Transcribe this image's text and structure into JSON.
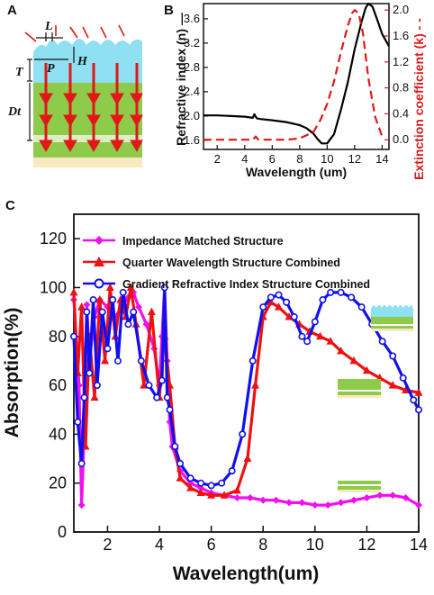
{
  "panel_labels": {
    "a": "A",
    "b": "B",
    "c": "C"
  },
  "schematic": {
    "labels": {
      "L": "L",
      "H": "H",
      "P": "P",
      "T": "T",
      "Dt": "Dt"
    },
    "colors": {
      "cyan": "#8ee0f2",
      "green": "#8ecb4a",
      "cream": "#fae8c0",
      "arrow": "#e01818"
    }
  },
  "chart_data": [
    {
      "type": "line",
      "panel": "B",
      "xlabel": "Wavelength (um)",
      "ylabel": "Refractive index (n) —",
      "ylabel_right": "Extinction coefficient (k) - -",
      "xlim": [
        1,
        14.5
      ],
      "ylim": [
        1.45,
        3.85
      ],
      "ylim_right": [
        -0.15,
        2.1
      ],
      "xticks": [
        "2",
        "4",
        "6",
        "8",
        "10",
        "12",
        "14"
      ],
      "yticks": [
        "1.6",
        "2.0",
        "2.4",
        "2.8",
        "3.2",
        "3.6"
      ],
      "yticks_right": [
        "0.0",
        "0.4",
        "0.8",
        "1.2",
        "1.6",
        "2.0"
      ],
      "series": [
        {
          "color": "#000000",
          "style": "solid",
          "axis": "left",
          "x": [
            1.0,
            2.0,
            3.0,
            4.0,
            4.6,
            4.7,
            4.8,
            4.9,
            5.2,
            6.0,
            7.0,
            8.0,
            8.5,
            9.0,
            9.3,
            9.6,
            10.0,
            10.5,
            11.0,
            11.5,
            12.0,
            12.5,
            12.8,
            13.0,
            13.3,
            13.7,
            14.0,
            14.5
          ],
          "y": [
            2.01,
            2.01,
            2.0,
            1.99,
            1.97,
            2.03,
            1.99,
            1.96,
            1.95,
            1.93,
            1.9,
            1.85,
            1.8,
            1.71,
            1.62,
            1.55,
            1.55,
            1.7,
            2.1,
            2.55,
            3.1,
            3.55,
            3.78,
            3.85,
            3.8,
            3.55,
            3.35,
            3.15
          ]
        },
        {
          "color": "#e01818",
          "style": "dashed",
          "axis": "right",
          "x": [
            1.0,
            3.0,
            4.6,
            4.8,
            5.0,
            6.0,
            7.0,
            8.0,
            9.0,
            9.5,
            10.0,
            10.5,
            11.0,
            11.5,
            11.8,
            12.0,
            12.3,
            12.6,
            13.0,
            13.5,
            14.0
          ],
          "y": [
            0.0,
            0.0,
            0.0,
            0.05,
            0.0,
            0.0,
            0.0,
            0.02,
            0.12,
            0.3,
            0.55,
            0.9,
            1.35,
            1.75,
            1.95,
            2.0,
            1.95,
            1.65,
            0.95,
            0.35,
            0.05
          ]
        }
      ]
    },
    {
      "type": "line",
      "panel": "C",
      "xlabel": "Wavelength(um)",
      "ylabel": "Absorption(%)",
      "xlim": [
        0.7,
        14
      ],
      "ylim": [
        0,
        130
      ],
      "xticks": [
        "2",
        "4",
        "6",
        "8",
        "10",
        "12",
        "14"
      ],
      "yticks": [
        "0",
        "20",
        "40",
        "60",
        "80",
        "100",
        "120"
      ],
      "legend_position": "top-left",
      "series": [
        {
          "name": "Impedance Matched Structure",
          "color": "#f00ff0",
          "marker": "diamond",
          "x": [
            0.7,
            0.9,
            1.0,
            1.1,
            1.2,
            1.3,
            1.5,
            1.7,
            2.0,
            2.3,
            2.6,
            2.8,
            3.0,
            3.2,
            3.5,
            3.8,
            4.0,
            4.1,
            4.2,
            4.3,
            4.4,
            4.5,
            4.8,
            5.2,
            5.6,
            6.0,
            6.5,
            7.0,
            7.5,
            8.0,
            8.5,
            9.0,
            9.5,
            10.0,
            10.5,
            11.0,
            11.5,
            12.0,
            12.5,
            13.0,
            13.5,
            14.0
          ],
          "y": [
            95,
            60,
            11,
            40,
            93,
            70,
            88,
            95,
            92,
            88,
            93,
            96,
            98,
            92,
            85,
            75,
            60,
            80,
            100,
            70,
            45,
            35,
            25,
            20,
            18,
            16,
            15,
            14,
            14,
            13,
            13,
            12,
            12,
            11,
            11,
            12,
            13,
            14,
            15,
            15,
            14,
            11
          ]
        },
        {
          "name": "Quarter Wavelength Structure Combined",
          "color": "#ee1111",
          "marker": "triangle",
          "x": [
            0.7,
            0.85,
            1.0,
            1.15,
            1.3,
            1.5,
            1.7,
            1.9,
            2.1,
            2.3,
            2.5,
            2.7,
            2.9,
            3.1,
            3.4,
            3.7,
            4.0,
            4.2,
            4.4,
            4.6,
            4.8,
            5.2,
            5.6,
            6.0,
            6.5,
            7.0,
            7.4,
            7.7,
            8.0,
            8.3,
            8.6,
            9.0,
            9.4,
            9.8,
            10.2,
            10.6,
            11.0,
            11.5,
            12.0,
            12.5,
            13.0,
            13.5,
            14.0
          ],
          "y": [
            98,
            65,
            92,
            35,
            80,
            55,
            95,
            70,
            100,
            80,
            95,
            88,
            100,
            85,
            60,
            90,
            55,
            80,
            60,
            35,
            22,
            18,
            16,
            15,
            15,
            17,
            30,
            60,
            88,
            94,
            92,
            88,
            85,
            82,
            80,
            78,
            74,
            70,
            66,
            63,
            60,
            58,
            57
          ]
        },
        {
          "name": "Gradient Refractive Index Structure Combined",
          "color": "#1010ee",
          "marker": "circle",
          "x": [
            0.7,
            0.85,
            1.0,
            1.1,
            1.2,
            1.3,
            1.45,
            1.6,
            1.8,
            2.0,
            2.2,
            2.4,
            2.6,
            2.8,
            3.0,
            3.3,
            3.6,
            3.9,
            4.1,
            4.2,
            4.3,
            4.4,
            4.6,
            4.8,
            5.2,
            5.6,
            6.0,
            6.4,
            6.8,
            7.2,
            7.6,
            8.0,
            8.3,
            8.6,
            8.9,
            9.2,
            9.5,
            9.7,
            10.0,
            10.3,
            10.6,
            11.0,
            11.4,
            11.8,
            12.2,
            12.6,
            13.0,
            13.4,
            13.8,
            14.0
          ],
          "y": [
            80,
            45,
            28,
            55,
            90,
            65,
            95,
            60,
            90,
            75,
            95,
            70,
            98,
            85,
            90,
            70,
            60,
            55,
            62,
            100,
            55,
            50,
            35,
            28,
            22,
            20,
            19,
            20,
            25,
            40,
            70,
            92,
            96,
            97,
            94,
            88,
            80,
            78,
            86,
            95,
            98,
            98,
            96,
            92,
            85,
            78,
            72,
            63,
            54,
            50
          ]
        }
      ]
    }
  ]
}
